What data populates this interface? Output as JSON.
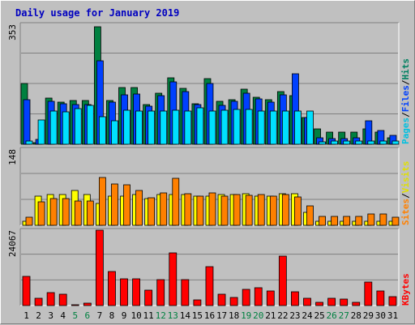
{
  "title": "Daily usage for January 2019",
  "chart_data": [
    {
      "type": "bar",
      "title": "Daily usage for January 2019",
      "categories": [
        "1",
        "2",
        "3",
        "4",
        "5",
        "6",
        "7",
        "8",
        "9",
        "10",
        "11",
        "12",
        "13",
        "14",
        "15",
        "16",
        "17",
        "18",
        "19",
        "20",
        "21",
        "22",
        "23",
        "24",
        "25",
        "26",
        "27",
        "28",
        "29",
        "30",
        "31"
      ],
      "weekend_days": [
        "5",
        "6",
        "12",
        "13",
        "19",
        "20",
        "26",
        "27"
      ],
      "max_label": "353",
      "ylim": [
        0,
        353
      ],
      "grid": true,
      "legend_placement": "right",
      "legend": [
        "Pages",
        "Files",
        "Hits"
      ],
      "series": [
        {
          "name": "Hits",
          "color": "#008040",
          "values": [
            180,
            5,
            135,
            125,
            128,
            128,
            346,
            128,
            168,
            168,
            118,
            150,
            196,
            165,
            120,
            193,
            126,
            132,
            162,
            138,
            130,
            155,
            143,
            78,
            46,
            36,
            36,
            36,
            45,
            36,
            18
          ]
        },
        {
          "name": "Files",
          "color": "#0040ff",
          "values": [
            130,
            15,
            127,
            120,
            118,
            118,
            245,
            125,
            145,
            148,
            112,
            143,
            183,
            155,
            116,
            180,
            115,
            126,
            150,
            134,
            125,
            145,
            207,
            78,
            20,
            16,
            16,
            19,
            68,
            41,
            26
          ]
        },
        {
          "name": "Pages",
          "color": "#00e0ff",
          "values": [
            10,
            72,
            98,
            95,
            105,
            115,
            82,
            70,
            99,
            98,
            98,
            98,
            99,
            98,
            107,
            98,
            99,
            103,
            102,
            98,
            98,
            98,
            98,
            98,
            7,
            9,
            9,
            9,
            9,
            9,
            9
          ]
        }
      ]
    },
    {
      "type": "bar",
      "max_label": "148",
      "ylim": [
        0,
        148
      ],
      "grid": true,
      "legend_placement": "right",
      "legend": [
        "Sites",
        "Visits"
      ],
      "series": [
        {
          "name": "Visits",
          "color": "#ffff00",
          "values": [
            8,
            57,
            60,
            60,
            67,
            60,
            42,
            57,
            57,
            60,
            52,
            60,
            60,
            60,
            57,
            57,
            60,
            60,
            62,
            57,
            57,
            62,
            62,
            25,
            8,
            8,
            8,
            8,
            8,
            8,
            8
          ]
        },
        {
          "name": "Sites",
          "color": "#ff8000",
          "values": [
            15,
            45,
            52,
            52,
            48,
            48,
            93,
            80,
            79,
            67,
            53,
            63,
            92,
            62,
            57,
            63,
            57,
            60,
            58,
            60,
            57,
            60,
            55,
            37,
            18,
            18,
            18,
            18,
            22,
            22,
            15
          ]
        }
      ]
    },
    {
      "type": "bar",
      "max_label": "24067",
      "ylim": [
        0,
        24067
      ],
      "grid": true,
      "legend_placement": "right",
      "legend": [
        "KBytes"
      ],
      "series": [
        {
          "name": "KBytes",
          "color": "#ff0000",
          "values": [
            9200,
            2400,
            4100,
            3600,
            200,
            900,
            24067,
            10800,
            8600,
            8600,
            4800,
            8300,
            16700,
            8300,
            1700,
            12300,
            3600,
            2500,
            5200,
            5800,
            4700,
            15800,
            4300,
            2400,
            1000,
            2400,
            2000,
            1000,
            7400,
            4700,
            2800
          ]
        }
      ]
    }
  ]
}
